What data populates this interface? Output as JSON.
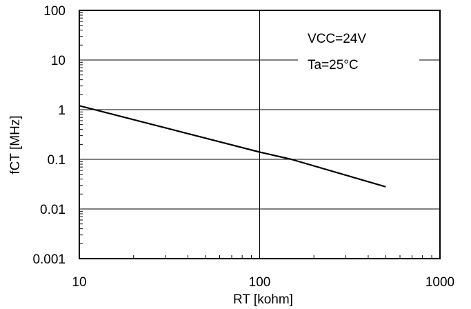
{
  "chart_data": {
    "type": "line",
    "xscale": "log",
    "yscale": "log",
    "xlim": [
      10,
      1000
    ],
    "ylim": [
      0.001,
      100
    ],
    "xlabel": "RT [kohm]",
    "ylabel": "fCT [MHz]",
    "xticks": [
      "10",
      "100",
      "1000"
    ],
    "yticks": [
      "0.001",
      "0.01",
      "0.1",
      "1",
      "10",
      "100"
    ],
    "grid": true,
    "annotations": [
      "VCC=24V",
      "Ta=25°C"
    ],
    "series": [
      {
        "x": [
          10,
          100,
          150,
          500
        ],
        "y": [
          1.2,
          0.14,
          0.1,
          0.028
        ]
      }
    ]
  }
}
